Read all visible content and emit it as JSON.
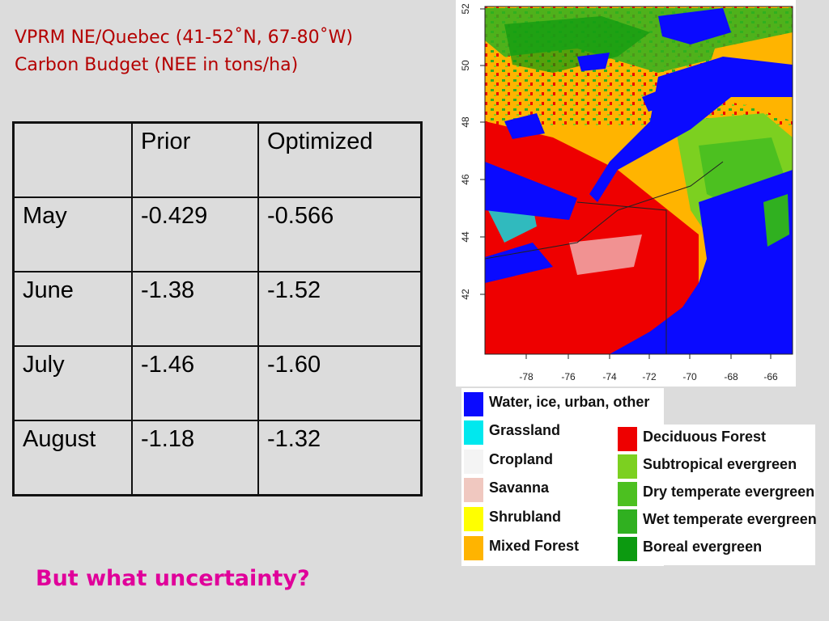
{
  "title": "VPRM NE/Quebec (41-52˚N, 67-80˚W) Carbon Budget (NEE in tons/ha)",
  "table": {
    "headers": [
      "",
      "Prior",
      "Optimized"
    ],
    "rows": [
      [
        "May",
        "-0.429",
        "-0.566"
      ],
      [
        "June",
        "-1.38",
        "-1.52"
      ],
      [
        "July",
        "-1.46",
        "-1.60"
      ],
      [
        "August",
        "-1.18",
        "-1.32"
      ]
    ]
  },
  "question": "But what uncertainty?",
  "map": {
    "lat_ticks": [
      "52",
      "50",
      "48",
      "46",
      "44",
      "42"
    ],
    "lon_ticks": [
      "-78",
      "-76",
      "-74",
      "-72",
      "-70",
      "-68",
      "-66"
    ]
  },
  "legend": {
    "left": [
      {
        "label": "Water, ice, urban, other",
        "color": "#0a0aff"
      },
      {
        "label": "Grassland",
        "color": "#00e8ee"
      },
      {
        "label": "Cropland",
        "color": "#f4f4f4"
      },
      {
        "label": "Savanna",
        "color": "#f0c8c0"
      },
      {
        "label": "Shrubland",
        "color": "#ffff00"
      },
      {
        "label": "Mixed Forest",
        "color": "#ffb400"
      }
    ],
    "right": [
      {
        "label": "Deciduous Forest",
        "color": "#ee0000"
      },
      {
        "label": "Subtropical evergreen",
        "color": "#7cd020"
      },
      {
        "label": "Dry temperate evergreen",
        "color": "#4cc020"
      },
      {
        "label": "Wet temperate evergreen",
        "color": "#30b020"
      },
      {
        "label": "Boreal evergreen",
        "color": "#0c9a10"
      }
    ]
  }
}
